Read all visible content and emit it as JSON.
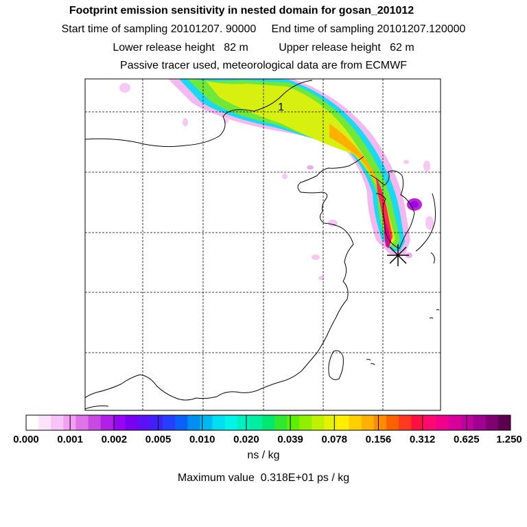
{
  "header": {
    "title": "Footprint emission sensitivity in nested domain for gosan_201012",
    "line2": "Start time of sampling 20101207. 90000     End time of sampling 20101207.120000",
    "line3": "Lower release height   82 m          Upper release height   62 m",
    "line4": "Passive tracer used, meteorological data are from ECMWF"
  },
  "chart_data": {
    "type": "heatmap",
    "title": "Footprint emission sensitivity in nested domain for gosan_201012",
    "colorbar": {
      "tick_labels": [
        "0.000",
        "0.001",
        "0.002",
        "0.005",
        "0.010",
        "0.020",
        "0.039",
        "0.078",
        "0.156",
        "0.312",
        "0.625",
        "1.250"
      ],
      "unit": "ns / kg",
      "colors": [
        "#ffffff",
        "#fbe3fb",
        "#f7c4f7",
        "#f0a0f0",
        "#df74e8",
        "#c94ae2",
        "#b020e6",
        "#9606f0",
        "#7a00f2",
        "#5c10f5",
        "#3f20f8",
        "#2540fa",
        "#0a60f8",
        "#0090f2",
        "#00b8f0",
        "#00e0f0",
        "#00f5e8",
        "#00f0c0",
        "#00eea0",
        "#00e870",
        "#30e830",
        "#60ee00",
        "#90f000",
        "#c0f200",
        "#e6f200",
        "#ffee00",
        "#ffd000",
        "#ffb000",
        "#ff8c00",
        "#ff6000",
        "#ff3a20",
        "#ff1040",
        "#ff0870",
        "#f0008c",
        "#d8009a",
        "#c000a0",
        "#a00090",
        "#800070",
        "#5c0050"
      ]
    },
    "plume_label": "1",
    "receptor_marker": "star",
    "max_value_text": "Maximum value  0.318E+01 ps / kg"
  }
}
